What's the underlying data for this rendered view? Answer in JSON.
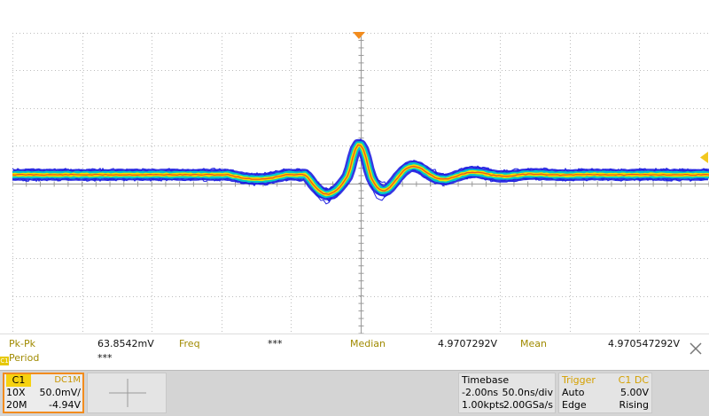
{
  "measurements": {
    "row1": [
      {
        "label": "Pk-Pk",
        "value": "63.8542mV"
      },
      {
        "label": "Freq",
        "value": "***"
      },
      {
        "label": "Median",
        "value": "4.9707292V"
      },
      {
        "label": "Mean",
        "value": "4.970547292V"
      }
    ],
    "row2": [
      {
        "label": "Period",
        "value": "***"
      }
    ],
    "channel_tag": "C1"
  },
  "channel": {
    "name": "C1",
    "coupling": "DC1M",
    "probe": "10X",
    "scale": "50.0mV/",
    "bandwidth": "20M",
    "offset": "-4.94V"
  },
  "timebase": {
    "title": "Timebase",
    "delay": "-2.00ns",
    "per_div": "50.0ns/div",
    "points": "1.00kpts",
    "sample_rate": "2.00GSa/s"
  },
  "trigger": {
    "title": "Trigger",
    "source": "C1 DC",
    "mode": "Auto",
    "level": "5.00V",
    "type": "Edge",
    "slope": "Rising"
  },
  "colors": {
    "trace_outer": "#2020e0",
    "trace_mid": "#00c8c8",
    "trace_inner": "#f0e000",
    "trace_core": "#f03020",
    "marker": "#f28c1e",
    "grid": "#bdbdbd"
  }
}
